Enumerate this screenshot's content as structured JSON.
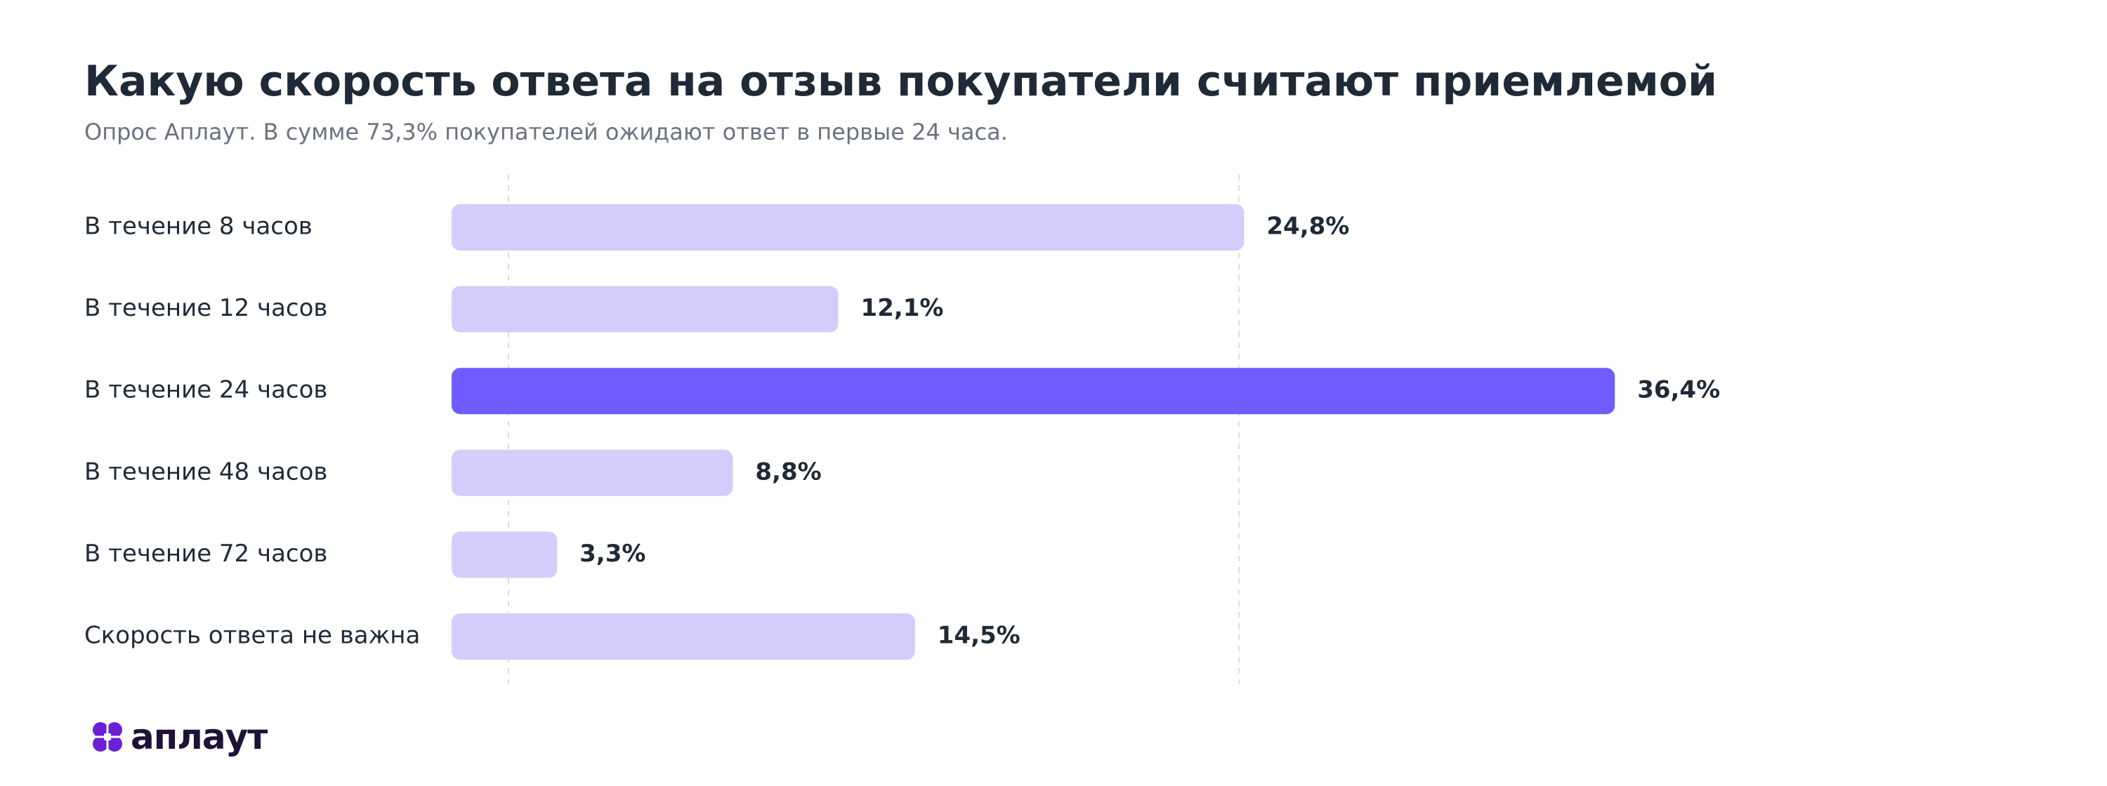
{
  "header": {
    "title": "Какую скорость ответа на отзыв покупатели считают приемлемой",
    "subtitle": "Опрос Аплаут. В сумме 73,3% покупателей ожидают ответ в первые 24 часа."
  },
  "brand": {
    "logo_text": "аплаут",
    "logo_color": "#1f1237",
    "logo_mark_color": "#6b1fd6"
  },
  "colors": {
    "bar_default": "#d3cdfb",
    "bar_highlight": "#6f5cff",
    "grid": "#dcdcdc",
    "text": "#1f2a37"
  },
  "chart_data": {
    "type": "bar",
    "orientation": "horizontal",
    "categories": [
      "В течение 8 часов",
      "В течение 12 часов",
      "В течение 24 часов",
      "В течение 48 часов",
      "В течение 72 часов",
      "Скорость ответа не важна"
    ],
    "values": [
      24.8,
      12.1,
      36.4,
      8.8,
      3.3,
      14.5
    ],
    "value_labels": [
      "24,8%",
      "12,1%",
      "36,4%",
      "8,8%",
      "3,3%",
      "14,5%"
    ],
    "highlight_index": 2,
    "title": "Какую скорость ответа на отзыв покупатели считают приемлемой",
    "xlabel": "",
    "ylabel": "",
    "xlim": [
      0,
      36.4
    ],
    "grid": true,
    "legend": false
  }
}
